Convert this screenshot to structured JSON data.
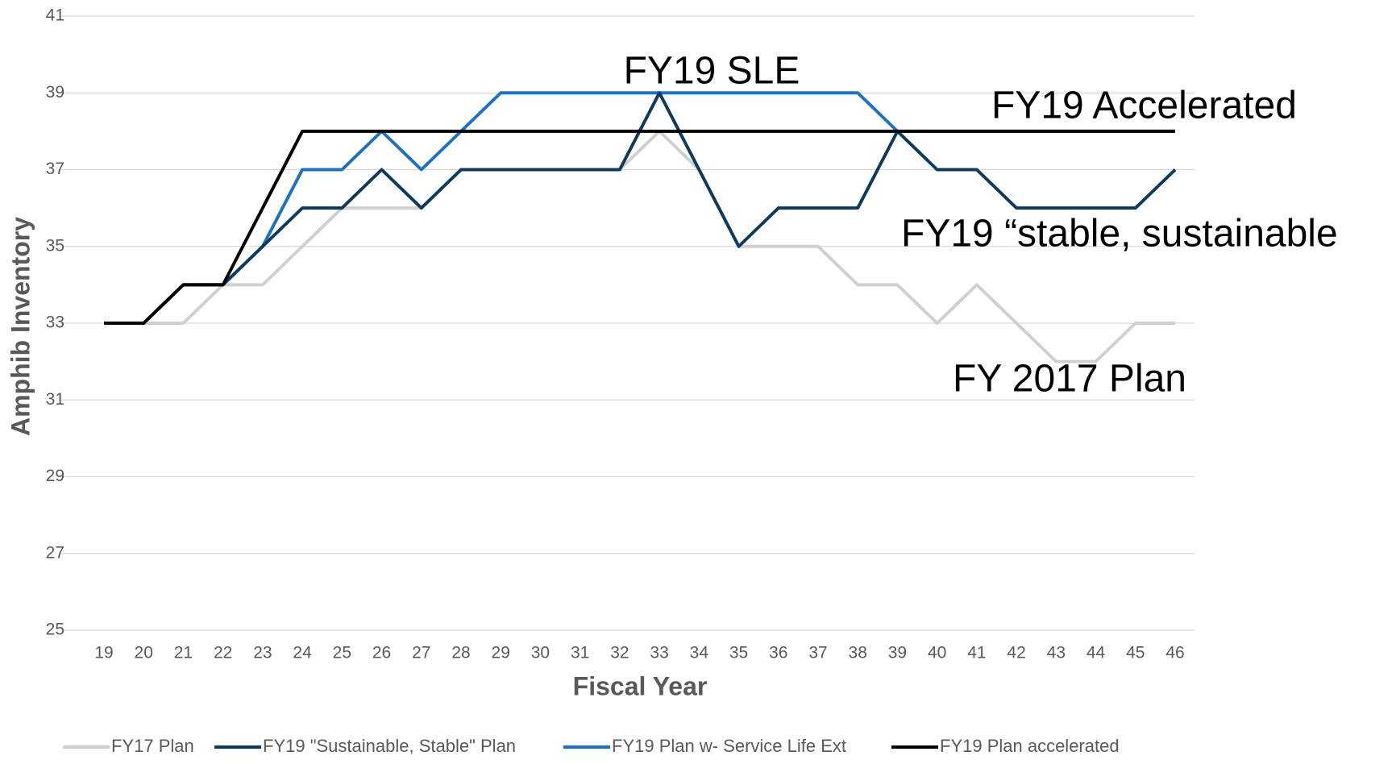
{
  "chart_data": {
    "type": "line",
    "x_label": "Fiscal Year",
    "y_label": "Amphib Inventory",
    "categories": [
      "19",
      "20",
      "21",
      "22",
      "23",
      "24",
      "25",
      "26",
      "27",
      "28",
      "29",
      "30",
      "31",
      "32",
      "33",
      "34",
      "35",
      "36",
      "37",
      "38",
      "39",
      "40",
      "41",
      "42",
      "43",
      "44",
      "45",
      "46"
    ],
    "series": [
      {
        "name": "FY17 Plan",
        "color": "#d0d0d0",
        "values": [
          33,
          33,
          33,
          34,
          34,
          35,
          36,
          36,
          36,
          37,
          37,
          37,
          37,
          37,
          38,
          37,
          35,
          35,
          35,
          34,
          34,
          33,
          34,
          33,
          32,
          32,
          33,
          33
        ]
      },
      {
        "name": "FY19 \"Sustainable, Stable\" Plan",
        "color": "#0e3a5c",
        "values": [
          33,
          33,
          34,
          34,
          35,
          36,
          36,
          37,
          36,
          37,
          37,
          37,
          37,
          37,
          39,
          37,
          35,
          36,
          36,
          36,
          38,
          37,
          37,
          36,
          36,
          36,
          36,
          37
        ]
      },
      {
        "name": "FY19 Plan w- Service Life Ext",
        "color": "#1f72c0",
        "values": [
          33,
          33,
          34,
          34,
          35,
          37,
          37,
          38,
          37,
          38,
          39,
          39,
          39,
          39,
          39,
          39,
          39,
          39,
          39,
          39,
          38,
          38,
          38,
          38,
          38,
          38,
          38,
          38
        ]
      },
      {
        "name": "FY19 Plan accelerated",
        "color": "#000000",
        "values": [
          33,
          33,
          34,
          34,
          36,
          38,
          38,
          38,
          38,
          38,
          38,
          38,
          38,
          38,
          38,
          38,
          38,
          38,
          38,
          38,
          38,
          38,
          38,
          38,
          38,
          38,
          38,
          38
        ]
      }
    ],
    "annotations": [
      "FY19 SLE",
      "FY19 Accelerated",
      "FY19 “stable, sustainable",
      "FY 2017 Plan"
    ],
    "ylim": [
      25,
      41
    ],
    "yticks": [
      25,
      27,
      29,
      31,
      33,
      35,
      37,
      39,
      41
    ],
    "grid": true,
    "legend": "bottom"
  }
}
